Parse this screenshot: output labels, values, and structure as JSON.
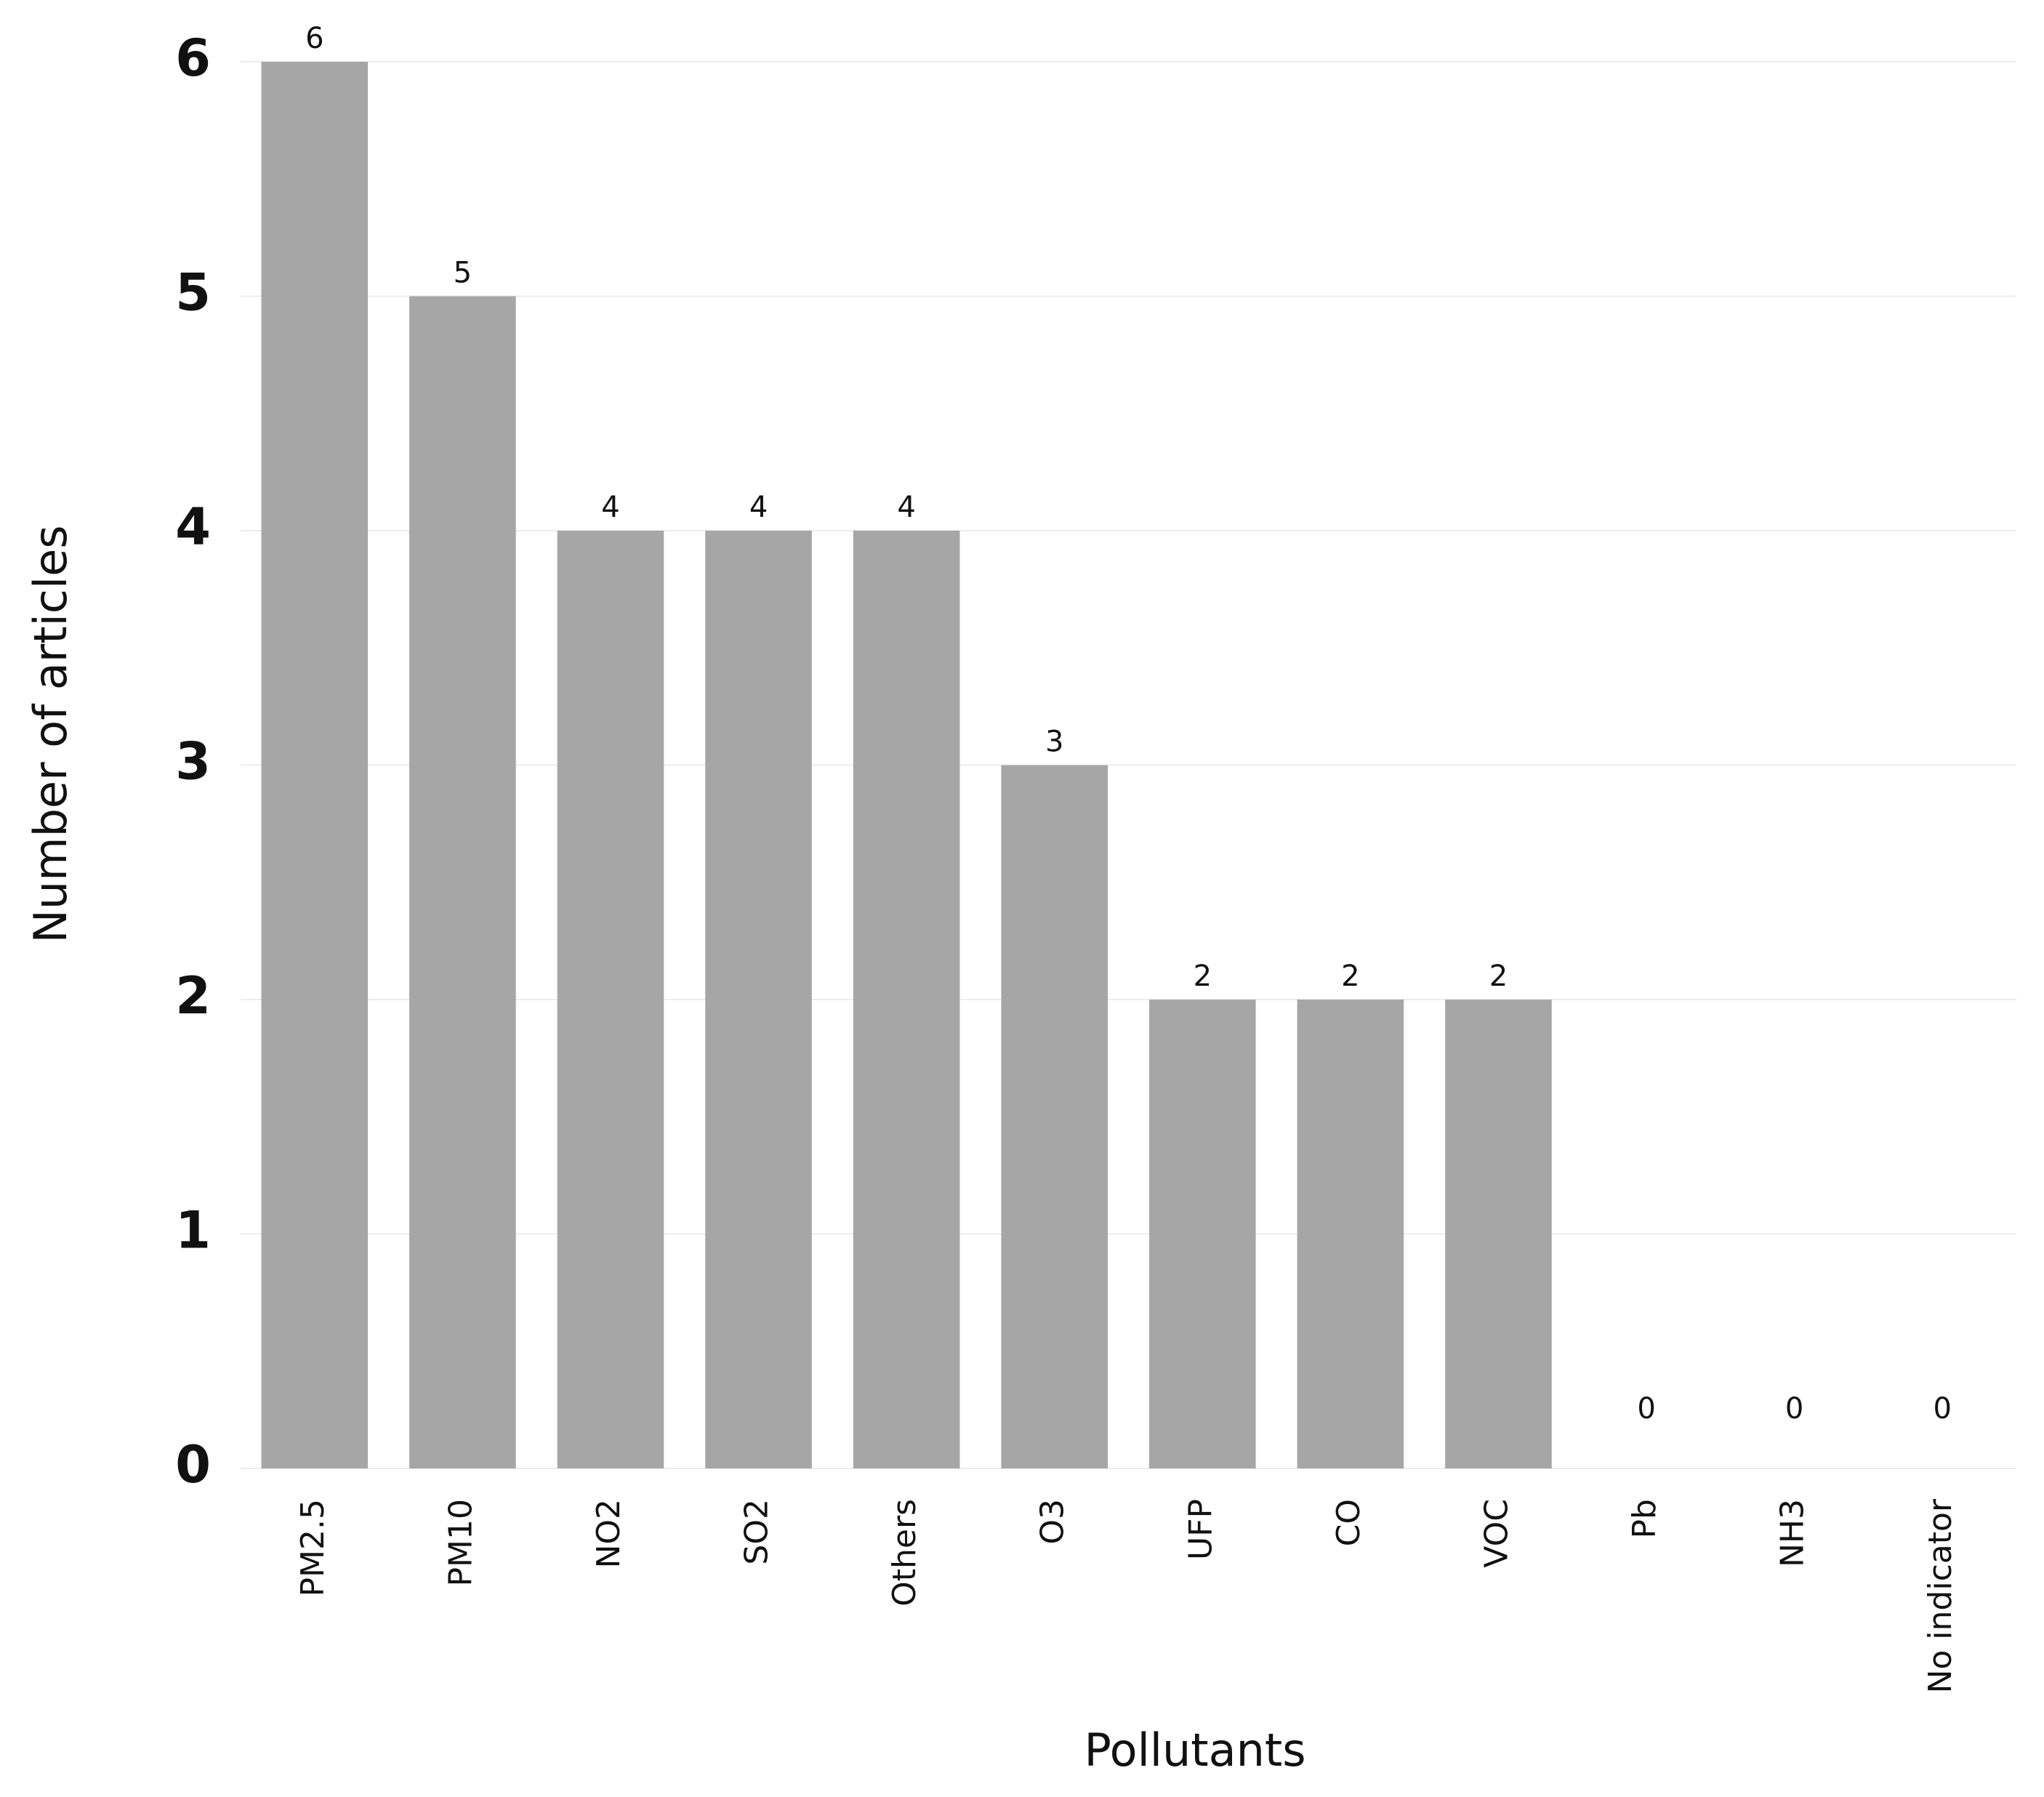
{
  "chart_data": {
    "type": "bar",
    "categories": [
      "PM2.5",
      "PM10",
      "NO2",
      "SO2",
      "Others",
      "O3",
      "UFP",
      "CO",
      "VOC",
      "Pb",
      "NH3",
      "No indicator"
    ],
    "values": [
      6,
      5,
      4,
      4,
      4,
      3,
      2,
      2,
      2,
      0,
      0,
      0
    ],
    "color": "#a6a6a6",
    "x_label": "Pollutants",
    "y_label": "Number of articles",
    "ylim": [
      0,
      6
    ],
    "yticks": [
      0,
      1,
      2,
      3,
      4,
      5,
      6
    ],
    "grid": true
  }
}
